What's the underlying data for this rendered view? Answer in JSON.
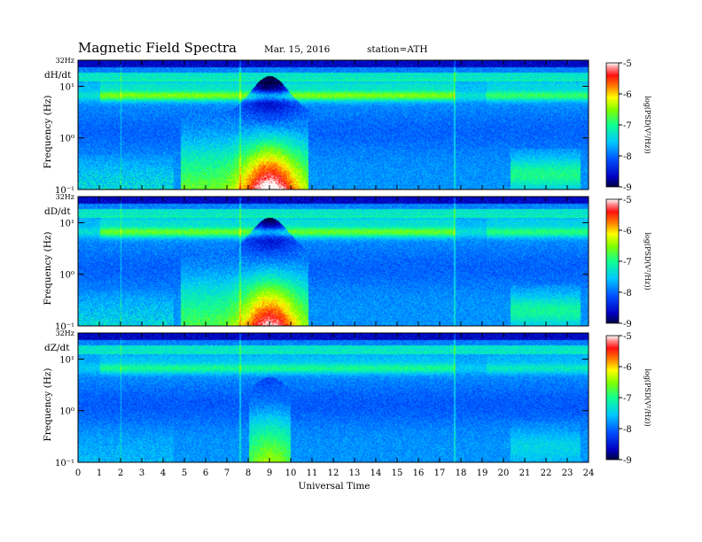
{
  "header": {
    "title": "Magnetic  Field  Spectra",
    "date": "Mar. 15, 2016",
    "station": "station=ATH"
  },
  "chart_data": [
    {
      "type": "heatmap",
      "component": "dH/dt",
      "ylabel": "Frequency  (Hz)",
      "top_label": "32Hz",
      "ytick_labels": [
        "10¹",
        "10⁰",
        "10⁻¹"
      ],
      "colorbar_label": "log(PSD(V²/Hz))",
      "colorbar_ticks": [
        -5,
        -6,
        -7,
        -8,
        -9
      ],
      "colorbar_range": [
        -9,
        -5
      ],
      "features": {
        "pc1_band_hz": 4,
        "lowfreq_burst_hours": [
          4.8,
          10.8
        ],
        "peak_hour": 9,
        "late_activity_hours": [
          20.3,
          23.6
        ],
        "level": 1.0
      }
    },
    {
      "type": "heatmap",
      "component": "dD/dt",
      "ylabel": "Frequency  (Hz)",
      "top_label": "32Hz",
      "ytick_labels": [
        "10¹",
        "10⁰",
        "10⁻¹"
      ],
      "colorbar_label": "log(PSD(V²/Hz))",
      "colorbar_ticks": [
        -5,
        -6,
        -7,
        -8,
        -9
      ],
      "colorbar_range": [
        -9,
        -5
      ],
      "features": {
        "pc1_band_hz": 4,
        "lowfreq_burst_hours": [
          4.8,
          10.8
        ],
        "peak_hour": 9,
        "late_activity_hours": [
          20.3,
          23.6
        ],
        "level": 0.9
      }
    },
    {
      "type": "heatmap",
      "component": "dZ/dt",
      "ylabel": "Frequency  (Hz)",
      "top_label": "32Hz",
      "ytick_labels": [
        "10¹",
        "10⁰",
        "10⁻¹"
      ],
      "colorbar_label": "log(PSD(V²/Hz))",
      "colorbar_ticks": [
        -5,
        -6,
        -7,
        -8,
        -9
      ],
      "colorbar_range": [
        -9,
        -5
      ],
      "features": {
        "pc1_band_hz": 4,
        "lowfreq_burst_hours": [
          8,
          10
        ],
        "peak_hour": 9,
        "late_activity_hours": [
          20.3,
          23.6
        ],
        "level": 0.45
      }
    }
  ],
  "xaxis": {
    "label": "Universal Time",
    "range": [
      0,
      24
    ],
    "ticks": [
      0,
      1,
      2,
      3,
      4,
      5,
      6,
      7,
      8,
      9,
      10,
      11,
      12,
      13,
      14,
      15,
      16,
      17,
      18,
      19,
      20,
      21,
      22,
      23,
      24
    ]
  }
}
